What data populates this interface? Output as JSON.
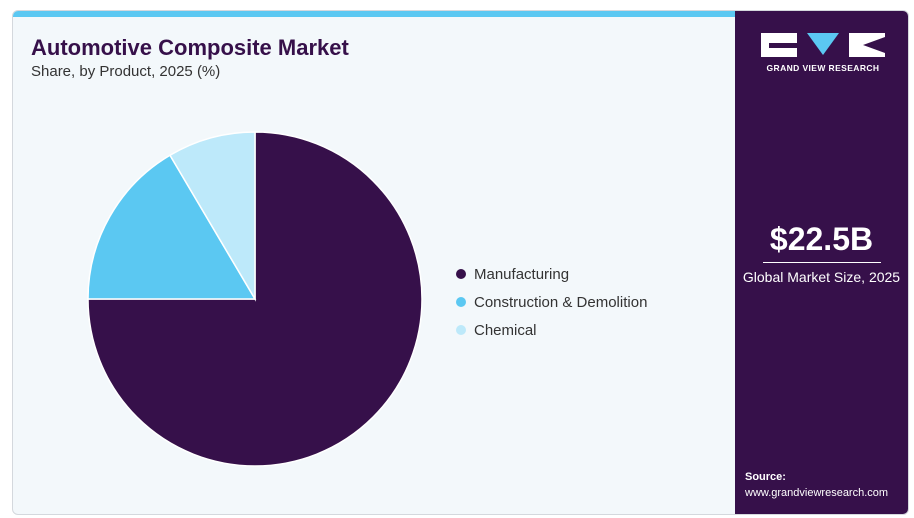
{
  "header": {
    "title": "Automotive Composite Market",
    "subtitle": "Share, by Product, 2025 (%)"
  },
  "chart_data": {
    "type": "pie",
    "title": "Automotive Composite Market",
    "subtitle": "Share, by Product, 2025 (%)",
    "categories": [
      "Manufacturing",
      "Construction & Demolition",
      "Chemical"
    ],
    "values": [
      75,
      16.5,
      8.5
    ],
    "colors": [
      "#36104a",
      "#5bc8f2",
      "#bde9fa"
    ],
    "legend_position": "right"
  },
  "side_panel": {
    "logo_text": "GRAND VIEW RESEARCH",
    "market_size": "$22.5B",
    "market_size_label": "Global Market Size, 2025",
    "source_label": "Source:",
    "source_url": "www.grandviewresearch.com"
  },
  "colors": {
    "brand": "#36104a",
    "accent": "#5bc8f2",
    "light_accent": "#bde9fa",
    "background": "#f3f8fb"
  }
}
